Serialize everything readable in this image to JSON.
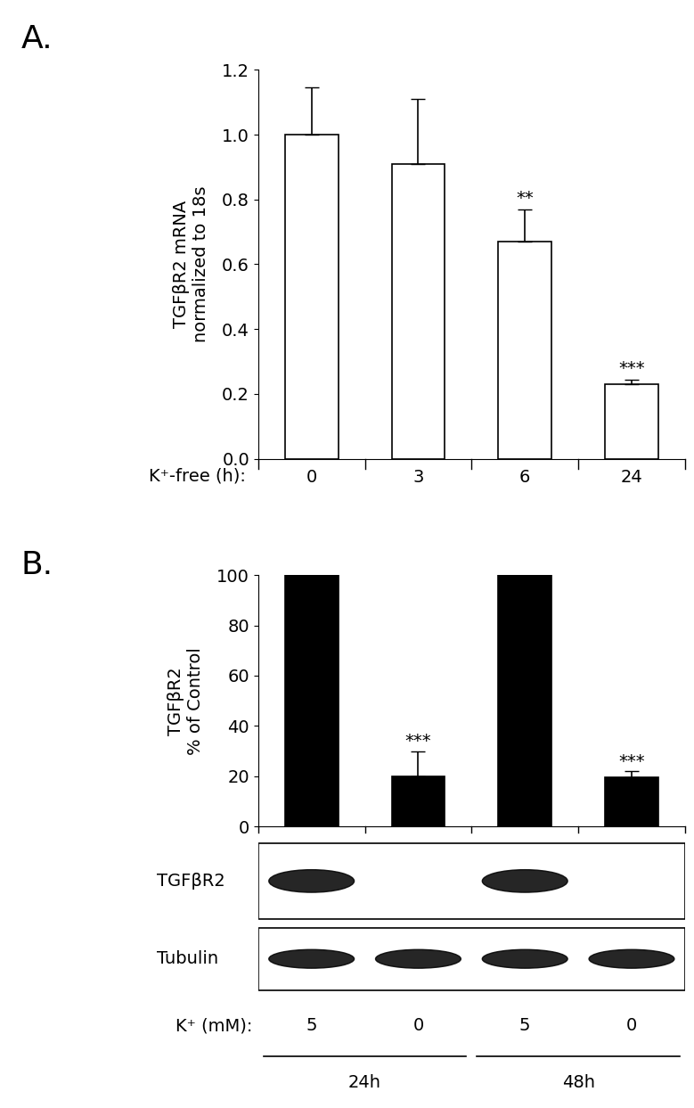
{
  "chart_data": [
    {
      "type": "bar",
      "title": "A.",
      "y_label": "TGFβR2 mRNA\nnormalized to 18s",
      "x_label": "K⁺-free (h):",
      "categories": [
        "0",
        "3",
        "6",
        "24"
      ],
      "values": [
        1.0,
        0.91,
        0.67,
        0.23
      ],
      "errors": [
        0.145,
        0.2,
        0.1,
        0.015
      ],
      "color": "#ffffff",
      "ylim": [
        0,
        1.2
      ],
      "yticks": [
        {
          "value": 0,
          "label": "0.0"
        },
        {
          "value": 0.2,
          "label": "0.2"
        },
        {
          "value": 0.4,
          "label": "0.4"
        },
        {
          "value": 0.6,
          "label": "0.6"
        },
        {
          "value": 0.8,
          "label": "0.8"
        },
        {
          "value": 1.0,
          "label": "1.0"
        },
        {
          "value": 1.2,
          "label": "1.2"
        }
      ],
      "annotations": [
        {
          "index": 2,
          "text": "**"
        },
        {
          "index": 3,
          "text": "***"
        }
      ],
      "grid": false
    },
    {
      "type": "bar",
      "title": "B.",
      "y_label": "TGFβR2\n% of Control",
      "categories": [
        null,
        null,
        null,
        null
      ],
      "values": [
        100,
        20,
        100,
        19.5
      ],
      "errors": [
        0.5,
        10,
        0.5,
        2.5
      ],
      "color": "#000000",
      "ylim": [
        0,
        100
      ],
      "yticks": [
        0,
        20,
        40,
        60,
        80,
        100
      ],
      "annotations": [
        {
          "index": 1,
          "text": "***"
        },
        {
          "index": 3,
          "text": "***"
        }
      ],
      "tick_labels": "y",
      "grid": false
    }
  ],
  "blot": {
    "rows": [
      {
        "label": "TGFβR2",
        "band_intensity": [
          1,
          0,
          1,
          0
        ]
      },
      {
        "label": "Tubulin",
        "band_intensity": [
          1,
          1,
          1,
          1
        ]
      }
    ],
    "lane_title": "K⁺ (mM):",
    "lanes": [
      "5",
      "0",
      "5",
      "0"
    ],
    "groups": [
      {
        "label": "24h",
        "lanes": [
          0,
          1
        ]
      },
      {
        "label": "48h",
        "lanes": [
          2,
          3
        ]
      }
    ]
  }
}
